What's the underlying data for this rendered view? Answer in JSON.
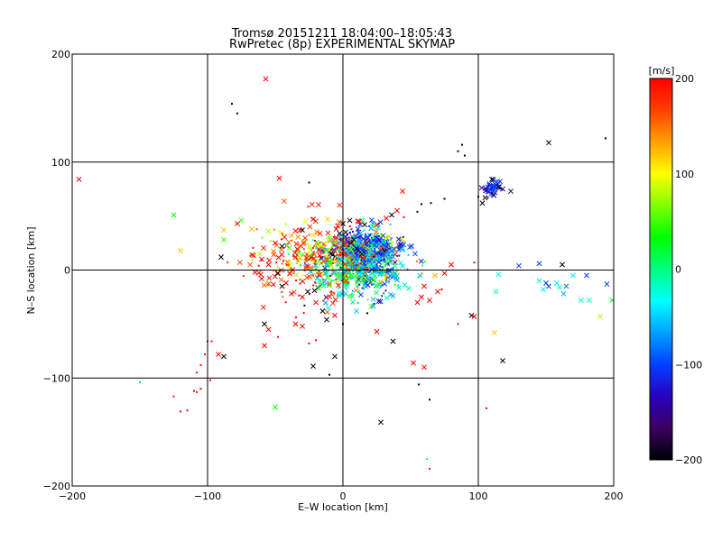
{
  "chart_data": {
    "type": "scatter",
    "title": "Tromsø 20151211 18:04:00–18:05:43",
    "subtitle": "RwPretec (8p) EXPERIMENTAL SKYMAP",
    "xlabel": "E–W location [km]",
    "ylabel": "N–S location [km]",
    "xlim": [
      -200,
      200
    ],
    "ylim": [
      -200,
      200
    ],
    "xticks": [
      -200,
      -100,
      0,
      100,
      200
    ],
    "yticks": [
      -200,
      -100,
      0,
      100,
      200
    ],
    "xtick_labels": [
      "−200",
      "−100",
      "0",
      "100",
      "200"
    ],
    "ytick_labels": [
      "−200",
      "−100",
      "0",
      "100",
      "200"
    ],
    "grid_lines_x": [
      -100,
      0,
      100
    ],
    "grid_lines_y": [
      -100,
      0,
      100
    ],
    "colorbar": {
      "label": "[m/s]",
      "range": [
        -200,
        200
      ],
      "ticks": [
        -200,
        -100,
        0,
        100,
        200
      ],
      "tick_labels": [
        "−200",
        "−100",
        "0",
        "100",
        "200"
      ],
      "colormap": [
        "#000000",
        "#3a0060",
        "#2a00c0",
        "#0040ff",
        "#00a0ff",
        "#00ffff",
        "#00ff80",
        "#00ff00",
        "#80ff00",
        "#ffff00",
        "#ffa000",
        "#ff4000",
        "#ff0000"
      ]
    },
    "marker_legend": "x = cross, • = dot",
    "points": [
      {
        "x": -195,
        "y": 84,
        "v": 200,
        "m": "x"
      },
      {
        "x": -125,
        "y": 51,
        "v": 30,
        "m": "x"
      },
      {
        "x": -120,
        "y": 18,
        "v": 120,
        "m": "x"
      },
      {
        "x": -90,
        "y": 12,
        "v": -200,
        "m": "x"
      },
      {
        "x": -88,
        "y": 37,
        "v": 120,
        "m": "x"
      },
      {
        "x": -88,
        "y": 28,
        "v": 50,
        "m": "x"
      },
      {
        "x": -82,
        "y": 154,
        "v": -200,
        "m": "d"
      },
      {
        "x": -78,
        "y": 145,
        "v": -200,
        "m": "d"
      },
      {
        "x": -57,
        "y": 177,
        "v": 200,
        "m": "x"
      },
      {
        "x": -47,
        "y": 85,
        "v": 200,
        "m": "x"
      },
      {
        "x": -25,
        "y": 81,
        "v": -200,
        "m": "d"
      },
      {
        "x": -75,
        "y": 46,
        "v": 50,
        "m": "x"
      },
      {
        "x": -78,
        "y": 43,
        "v": 200,
        "m": "x"
      },
      {
        "x": -55,
        "y": 36,
        "v": 80,
        "m": "x"
      },
      {
        "x": -50,
        "y": 25,
        "v": 200,
        "m": "x"
      },
      {
        "x": -45,
        "y": 22,
        "v": -200,
        "m": "x"
      },
      {
        "x": -40,
        "y": 26,
        "v": 150,
        "m": "x"
      },
      {
        "x": -38,
        "y": 32,
        "v": 130,
        "m": "x"
      },
      {
        "x": -35,
        "y": 12,
        "v": 200,
        "m": "x"
      },
      {
        "x": -30,
        "y": 37,
        "v": -200,
        "m": "x"
      },
      {
        "x": -22,
        "y": 47,
        "v": 200,
        "m": "x"
      },
      {
        "x": -60,
        "y": 10,
        "v": 200,
        "m": "x"
      },
      {
        "x": -55,
        "y": 5,
        "v": 200,
        "m": "x"
      },
      {
        "x": -65,
        "y": -2,
        "v": 200,
        "m": "x"
      },
      {
        "x": -60,
        "y": -8,
        "v": 200,
        "m": "x"
      },
      {
        "x": -48,
        "y": -3,
        "v": -200,
        "m": "x"
      },
      {
        "x": -42,
        "y": -12,
        "v": 200,
        "m": "x"
      },
      {
        "x": -45,
        "y": -15,
        "v": -200,
        "m": "x"
      },
      {
        "x": -38,
        "y": -22,
        "v": 200,
        "m": "x"
      },
      {
        "x": -30,
        "y": -25,
        "v": 200,
        "m": "x"
      },
      {
        "x": -26,
        "y": -20,
        "v": -200,
        "m": "x"
      },
      {
        "x": -20,
        "y": -30,
        "v": 200,
        "m": "x"
      },
      {
        "x": -15,
        "y": -38,
        "v": -200,
        "m": "x"
      },
      {
        "x": -12,
        "y": -46,
        "v": -200,
        "m": "x"
      },
      {
        "x": -6,
        "y": -42,
        "v": 200,
        "m": "x"
      },
      {
        "x": -35,
        "y": -50,
        "v": 200,
        "m": "x"
      },
      {
        "x": -30,
        "y": -52,
        "v": 200,
        "m": "x"
      },
      {
        "x": -58,
        "y": -50,
        "v": -200,
        "m": "x"
      },
      {
        "x": -55,
        "y": -55,
        "v": 200,
        "m": "x"
      },
      {
        "x": -58,
        "y": -70,
        "v": 200,
        "m": "x"
      },
      {
        "x": -48,
        "y": -62,
        "v": 200,
        "m": "d"
      },
      {
        "x": -92,
        "y": -78,
        "v": 200,
        "m": "x"
      },
      {
        "x": -88,
        "y": -80,
        "v": -200,
        "m": "x"
      },
      {
        "x": -100,
        "y": -66,
        "v": 200,
        "m": "d"
      },
      {
        "x": -102,
        "y": -78,
        "v": 200,
        "m": "d"
      },
      {
        "x": -105,
        "y": -88,
        "v": 200,
        "m": "d"
      },
      {
        "x": -108,
        "y": -95,
        "v": 200,
        "m": "d"
      },
      {
        "x": -110,
        "y": -112,
        "v": 200,
        "m": "d"
      },
      {
        "x": -108,
        "y": -113,
        "v": 200,
        "m": "d"
      },
      {
        "x": -105,
        "y": -110,
        "v": 200,
        "m": "d"
      },
      {
        "x": -125,
        "y": -117,
        "v": 200,
        "m": "d"
      },
      {
        "x": -115,
        "y": -130,
        "v": 200,
        "m": "d"
      },
      {
        "x": -120,
        "y": -131,
        "v": 200,
        "m": "d"
      },
      {
        "x": -150,
        "y": -104,
        "v": 30,
        "m": "d"
      },
      {
        "x": -97,
        "y": -66,
        "v": 200,
        "m": "d"
      },
      {
        "x": -98,
        "y": -102,
        "v": 200,
        "m": "d"
      },
      {
        "x": -50,
        "y": -127,
        "v": 30,
        "m": "x"
      },
      {
        "x": -22,
        "y": -89,
        "v": -200,
        "m": "x"
      },
      {
        "x": -6,
        "y": -80,
        "v": -200,
        "m": "x"
      },
      {
        "x": -10,
        "y": -97,
        "v": -200,
        "m": "d"
      },
      {
        "x": -20,
        "y": -65,
        "v": 200,
        "m": "d"
      },
      {
        "x": -25,
        "y": -68,
        "v": 200,
        "m": "d"
      },
      {
        "x": 0,
        "y": -50,
        "v": -200,
        "m": "d"
      },
      {
        "x": 10,
        "y": -38,
        "v": -50,
        "m": "x"
      },
      {
        "x": 18,
        "y": -40,
        "v": -200,
        "m": "d"
      },
      {
        "x": 25,
        "y": -57,
        "v": 200,
        "m": "x"
      },
      {
        "x": 37,
        "y": -66,
        "v": -200,
        "m": "x"
      },
      {
        "x": 28,
        "y": -141,
        "v": -200,
        "m": "x"
      },
      {
        "x": 52,
        "y": -86,
        "v": 200,
        "m": "x"
      },
      {
        "x": 60,
        "y": -90,
        "v": 200,
        "m": "x"
      },
      {
        "x": 56,
        "y": -106,
        "v": -200,
        "m": "d"
      },
      {
        "x": 64,
        "y": -120,
        "v": -200,
        "m": "d"
      },
      {
        "x": 62,
        "y": -175,
        "v": -20,
        "m": "d"
      },
      {
        "x": 64,
        "y": -184,
        "v": 200,
        "m": "d"
      },
      {
        "x": 106,
        "y": -128,
        "v": 200,
        "m": "d"
      },
      {
        "x": 118,
        "y": -84,
        "v": -200,
        "m": "x"
      },
      {
        "x": 95,
        "y": -42,
        "v": -200,
        "m": "x"
      },
      {
        "x": 97,
        "y": -43,
        "v": 200,
        "m": "x"
      },
      {
        "x": 85,
        "y": -50,
        "v": 200,
        "m": "d"
      },
      {
        "x": 112,
        "y": -58,
        "v": 120,
        "m": "x"
      },
      {
        "x": 60,
        "y": -15,
        "v": 200,
        "m": "x"
      },
      {
        "x": 58,
        "y": -25,
        "v": 200,
        "m": "x"
      },
      {
        "x": 55,
        "y": -30,
        "v": 200,
        "m": "x"
      },
      {
        "x": 64,
        "y": -28,
        "v": 200,
        "m": "x"
      },
      {
        "x": 70,
        "y": -20,
        "v": 200,
        "m": "x"
      },
      {
        "x": 73,
        "y": -18,
        "v": 200,
        "m": "d"
      },
      {
        "x": 68,
        "y": -5,
        "v": 130,
        "m": "x"
      },
      {
        "x": 75,
        "y": -3,
        "v": 200,
        "m": "x"
      },
      {
        "x": 80,
        "y": 5,
        "v": 200,
        "m": "x"
      },
      {
        "x": 97,
        "y": 7,
        "v": 200,
        "m": "d"
      },
      {
        "x": 85,
        "y": 110,
        "v": -200,
        "m": "d"
      },
      {
        "x": 88,
        "y": 116,
        "v": -200,
        "m": "d"
      },
      {
        "x": 90,
        "y": 106,
        "v": -200,
        "m": "d"
      },
      {
        "x": 152,
        "y": 118,
        "v": -200,
        "m": "x"
      },
      {
        "x": 194,
        "y": 122,
        "v": -200,
        "m": "d"
      },
      {
        "x": 58,
        "y": 61,
        "v": -200,
        "m": "d"
      },
      {
        "x": 75,
        "y": 66,
        "v": -200,
        "m": "d"
      },
      {
        "x": 65,
        "y": 62,
        "v": -200,
        "m": "d"
      },
      {
        "x": 55,
        "y": 54,
        "v": -200,
        "m": "d"
      },
      {
        "x": 44,
        "y": 73,
        "v": 200,
        "m": "x"
      },
      {
        "x": 40,
        "y": 55,
        "v": 200,
        "m": "x"
      },
      {
        "x": 36,
        "y": 51,
        "v": -200,
        "m": "x"
      },
      {
        "x": 45,
        "y": 49,
        "v": 200,
        "m": "d"
      },
      {
        "x": 32,
        "y": 48,
        "v": 200,
        "m": "x"
      },
      {
        "x": 25,
        "y": 42,
        "v": 200,
        "m": "x"
      },
      {
        "x": 16,
        "y": 42,
        "v": -200,
        "m": "x"
      },
      {
        "x": 12,
        "y": 45,
        "v": 200,
        "m": "x"
      },
      {
        "x": 5,
        "y": 46,
        "v": -200,
        "m": "x"
      },
      {
        "x": 0,
        "y": 43,
        "v": -200,
        "m": "x"
      },
      {
        "x": -5,
        "y": 38,
        "v": 200,
        "m": "x"
      },
      {
        "x": 2,
        "y": 35,
        "v": -200,
        "m": "x"
      },
      {
        "x": 8,
        "y": 28,
        "v": -200,
        "m": "x"
      },
      {
        "x": 6,
        "y": 25,
        "v": -200,
        "m": "x"
      },
      {
        "x": 10,
        "y": 20,
        "v": -200,
        "m": "x"
      },
      {
        "x": 14,
        "y": 15,
        "v": -200,
        "m": "x"
      },
      {
        "x": 103,
        "y": 62,
        "v": -200,
        "m": "x"
      },
      {
        "x": 105,
        "y": 67,
        "v": -200,
        "m": "x"
      },
      {
        "x": 108,
        "y": 73,
        "v": -100,
        "m": "x"
      },
      {
        "x": 110,
        "y": 78,
        "v": -100,
        "m": "x"
      },
      {
        "x": 112,
        "y": 80,
        "v": -100,
        "m": "x"
      },
      {
        "x": 113,
        "y": 76,
        "v": -100,
        "m": "x"
      },
      {
        "x": 108,
        "y": 80,
        "v": -100,
        "m": "x"
      },
      {
        "x": 110,
        "y": 84,
        "v": -200,
        "m": "x"
      },
      {
        "x": 115,
        "y": 77,
        "v": -200,
        "m": "x"
      },
      {
        "x": 116,
        "y": 82,
        "v": -120,
        "m": "x"
      },
      {
        "x": 118,
        "y": 75,
        "v": -160,
        "m": "x"
      },
      {
        "x": 106,
        "y": 74,
        "v": -140,
        "m": "x"
      },
      {
        "x": 111,
        "y": 70,
        "v": -180,
        "m": "x"
      },
      {
        "x": 124,
        "y": 73,
        "v": -160,
        "m": "x"
      },
      {
        "x": 100,
        "y": 68,
        "v": -180,
        "m": "d"
      },
      {
        "x": 107,
        "y": 67,
        "v": -180,
        "m": "d"
      },
      {
        "x": 130,
        "y": 4,
        "v": -100,
        "m": "x"
      },
      {
        "x": 145,
        "y": 6,
        "v": -100,
        "m": "x"
      },
      {
        "x": 162,
        "y": 5,
        "v": -200,
        "m": "x"
      },
      {
        "x": 115,
        "y": -4,
        "v": -20,
        "m": "x"
      },
      {
        "x": 113,
        "y": -20,
        "v": -20,
        "m": "x"
      },
      {
        "x": 145,
        "y": -10,
        "v": -20,
        "m": "x"
      },
      {
        "x": 150,
        "y": -12,
        "v": -100,
        "m": "x"
      },
      {
        "x": 152,
        "y": -15,
        "v": -100,
        "m": "x"
      },
      {
        "x": 148,
        "y": -18,
        "v": -40,
        "m": "x"
      },
      {
        "x": 158,
        "y": -12,
        "v": -40,
        "m": "x"
      },
      {
        "x": 160,
        "y": -16,
        "v": -20,
        "m": "x"
      },
      {
        "x": 165,
        "y": -15,
        "v": -80,
        "m": "x"
      },
      {
        "x": 163,
        "y": -22,
        "v": -60,
        "m": "x"
      },
      {
        "x": 170,
        "y": -5,
        "v": -30,
        "m": "x"
      },
      {
        "x": 176,
        "y": -28,
        "v": -20,
        "m": "x"
      },
      {
        "x": 180,
        "y": -5,
        "v": -100,
        "m": "x"
      },
      {
        "x": 182,
        "y": -28,
        "v": -20,
        "m": "x"
      },
      {
        "x": 190,
        "y": -43,
        "v": 80,
        "m": "x"
      },
      {
        "x": 195,
        "y": -13,
        "v": -100,
        "m": "x"
      },
      {
        "x": 199,
        "y": -28,
        "v": 30,
        "m": "x"
      }
    ],
    "clusters": [
      {
        "cx": 15,
        "cy": 20,
        "sx": 12,
        "sy": 9,
        "n": 260,
        "vmin": -150,
        "vmax": -60,
        "seed": 11
      },
      {
        "cx": 5,
        "cy": 8,
        "sx": 22,
        "sy": 14,
        "n": 260,
        "vmin": -200,
        "vmax": 200,
        "seed": 23
      },
      {
        "cx": -15,
        "cy": 18,
        "sx": 22,
        "sy": 11,
        "n": 160,
        "vmin": 60,
        "vmax": 200,
        "seed": 37
      },
      {
        "cx": 10,
        "cy": -5,
        "sx": 18,
        "sy": 12,
        "n": 170,
        "vmin": -80,
        "vmax": 60,
        "seed": 41
      },
      {
        "cx": 25,
        "cy": 10,
        "sx": 12,
        "sy": 14,
        "n": 150,
        "vmin": -130,
        "vmax": -20,
        "seed": 53
      },
      {
        "cx": -30,
        "cy": 5,
        "sx": 25,
        "sy": 22,
        "n": 120,
        "vmin": 150,
        "vmax": 200,
        "seed": 61
      },
      {
        "cx": 111,
        "cy": 77,
        "sx": 4,
        "sy": 4,
        "n": 30,
        "vmin": -150,
        "vmax": -80,
        "seed": 71
      }
    ]
  }
}
